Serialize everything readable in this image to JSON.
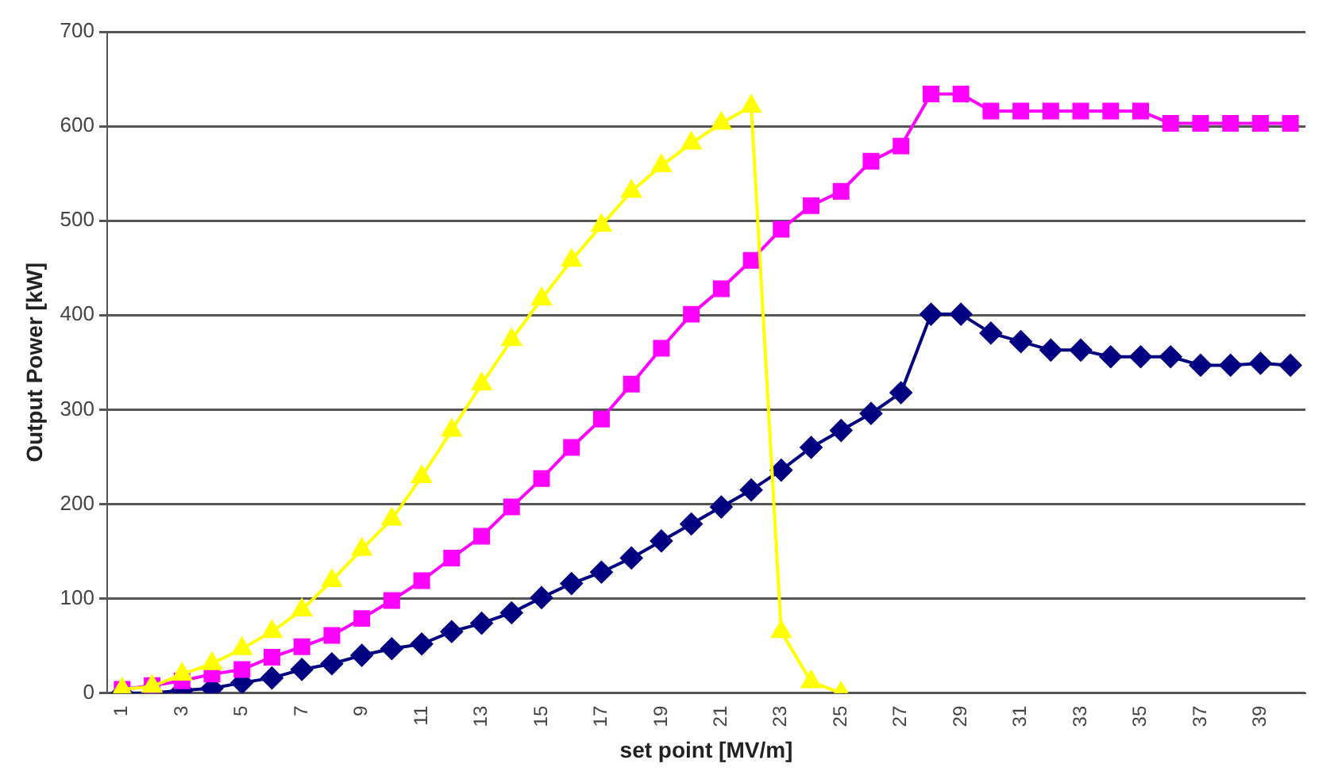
{
  "chart_data": {
    "type": "line",
    "xlabel": "set point [MV/m]",
    "ylabel": "Output Power [kW]",
    "categories": [
      "1",
      null,
      "3",
      null,
      "5",
      null,
      "7",
      null,
      "9",
      null,
      "11",
      null,
      "13",
      null,
      "15",
      null,
      "17",
      null,
      "19",
      null,
      "21",
      null,
      "23",
      null,
      "25",
      null,
      "27",
      null,
      "29",
      null,
      "31",
      null,
      "33",
      null,
      "35",
      null,
      "37",
      null,
      "39",
      null
    ],
    "series": [
      {
        "color": "#000080",
        "marker": "diamond",
        "values": [
          0,
          0,
          3,
          5,
          11,
          16,
          25,
          31,
          40,
          47,
          52,
          65,
          74,
          85,
          101,
          116,
          128,
          143,
          161,
          179,
          197,
          215,
          236,
          260,
          278,
          296,
          318,
          401,
          401,
          381,
          372,
          363,
          363,
          356,
          356,
          356,
          347,
          347,
          349,
          347
        ]
      },
      {
        "color": "#ff00ff",
        "marker": "square",
        "values": [
          4,
          8,
          13,
          20,
          25,
          38,
          49,
          61,
          79,
          98,
          119,
          143,
          166,
          197,
          227,
          260,
          290,
          327,
          365,
          401,
          428,
          458,
          491,
          516,
          531,
          563,
          579,
          634,
          634,
          616,
          616,
          616,
          616,
          616,
          616,
          603,
          603,
          603,
          603,
          603
        ]
      },
      {
        "color": "#ffff00",
        "marker": "triangle",
        "values": [
          4,
          7,
          20,
          31,
          47,
          65,
          88,
          119,
          152,
          184,
          229,
          278,
          327,
          374,
          417,
          458,
          495,
          531,
          558,
          582,
          603,
          621,
          65,
          12,
          0,
          null,
          null,
          null,
          null,
          null,
          null,
          null,
          null,
          null,
          null,
          null,
          null,
          null,
          null,
          null
        ]
      }
    ],
    "ylim": [
      0,
      700
    ],
    "yticks": [
      0,
      100,
      200,
      300,
      400,
      500,
      600,
      700
    ],
    "grid": "y",
    "legend": false
  }
}
